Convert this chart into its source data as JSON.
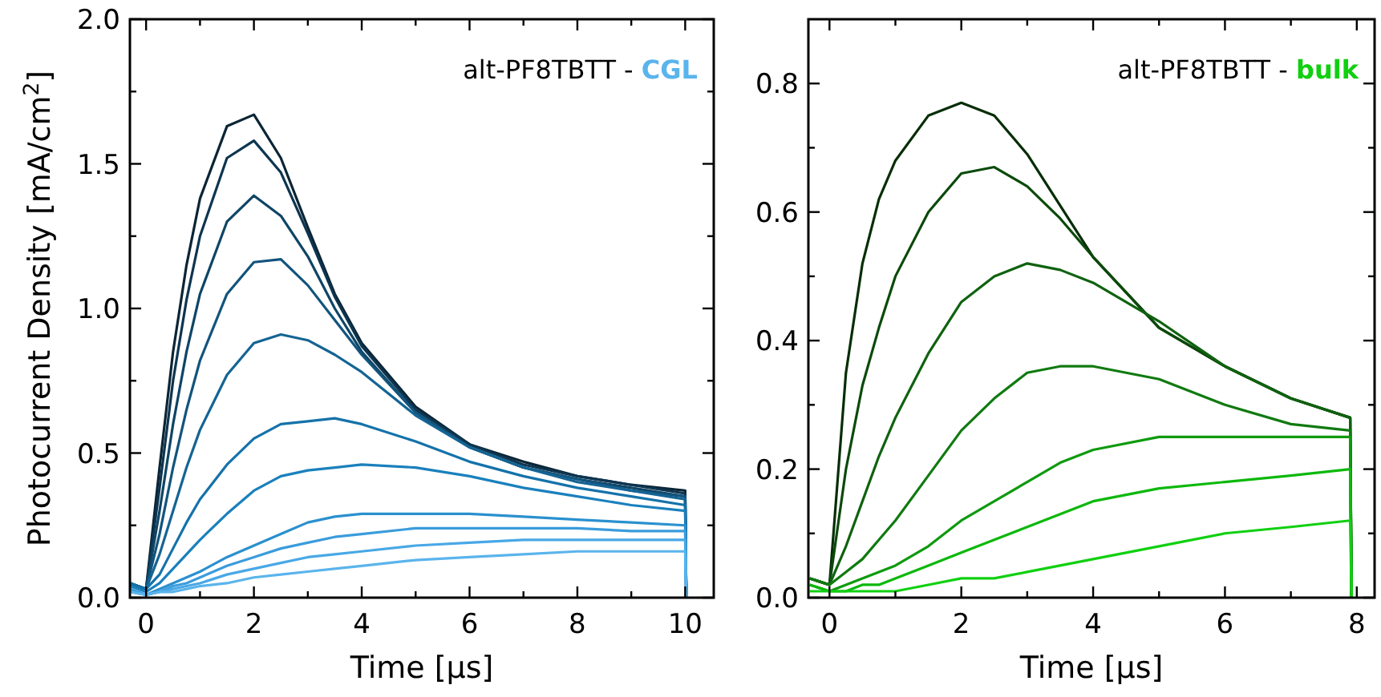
{
  "chart_data": [
    {
      "type": "line",
      "annotations": [
        "alt-PF8TBTT - CGL"
      ],
      "xlabel": "Time [μs]",
      "ylabel": "Photocurrent Density [mA/cm$^{2}$]",
      "xlim": [
        -0.3,
        10.53
      ],
      "ylim": [
        0,
        2.0
      ],
      "xticks": [
        0,
        {
          "value": 1,
          "label": null
        },
        2,
        {
          "value": 3,
          "label": null
        },
        4,
        {
          "value": 5,
          "label": null
        },
        6,
        {
          "value": 7,
          "label": null
        },
        8,
        {
          "value": 9,
          "label": null
        },
        10
      ],
      "yticks": [
        {
          "value": 0,
          "label": "0.0"
        },
        {
          "value": 0.25,
          "label": null
        },
        0.5,
        {
          "value": 0.75,
          "label": null
        },
        {
          "value": 1,
          "label": "1.0"
        },
        {
          "value": 1.25,
          "label": null
        },
        1.5,
        {
          "value": 1.75,
          "label": null
        },
        {
          "value": 2,
          "label": "2.0"
        }
      ],
      "grid": false,
      "line_style": "solid",
      "x": [
        -0.3,
        0,
        0.25,
        0.5,
        0.75,
        1,
        1.5,
        2,
        2.5,
        3,
        3.5,
        4,
        5,
        6,
        7,
        8,
        9,
        10,
        10.02
      ],
      "series": [
        {
          "color": "#0b2535",
          "values": [
            0.05,
            0.03,
            0.45,
            0.85,
            1.15,
            1.38,
            1.63,
            1.67,
            1.52,
            1.28,
            1.05,
            0.88,
            0.66,
            0.53,
            0.47,
            0.42,
            0.39,
            0.37,
            0
          ]
        },
        {
          "color": "#0d3550",
          "values": [
            0.05,
            0.03,
            0.38,
            0.75,
            1.03,
            1.25,
            1.52,
            1.58,
            1.47,
            1.26,
            1.04,
            0.87,
            0.65,
            0.53,
            0.46,
            0.42,
            0.39,
            0.36,
            0
          ]
        },
        {
          "color": "#0f4566",
          "values": [
            0.05,
            0.03,
            0.3,
            0.6,
            0.85,
            1.05,
            1.3,
            1.39,
            1.32,
            1.18,
            1.0,
            0.85,
            0.64,
            0.52,
            0.45,
            0.41,
            0.38,
            0.35,
            0
          ]
        },
        {
          "color": "#12547d",
          "values": [
            0.05,
            0.03,
            0.22,
            0.45,
            0.65,
            0.82,
            1.05,
            1.16,
            1.17,
            1.08,
            0.96,
            0.84,
            0.64,
            0.52,
            0.45,
            0.41,
            0.37,
            0.35,
            0
          ]
        },
        {
          "color": "#146494",
          "values": [
            0.05,
            0.03,
            0.15,
            0.3,
            0.45,
            0.58,
            0.77,
            0.88,
            0.91,
            0.89,
            0.84,
            0.78,
            0.63,
            0.52,
            0.45,
            0.4,
            0.37,
            0.34,
            0
          ]
        },
        {
          "color": "#1572aa",
          "values": [
            0.05,
            0.03,
            0.08,
            0.17,
            0.26,
            0.34,
            0.46,
            0.55,
            0.6,
            0.61,
            0.62,
            0.6,
            0.54,
            0.47,
            0.42,
            0.38,
            0.35,
            0.32,
            0
          ]
        },
        {
          "color": "#1a80bd",
          "values": [
            0.04,
            0.02,
            0.05,
            0.1,
            0.15,
            0.2,
            0.29,
            0.37,
            0.42,
            0.44,
            0.45,
            0.46,
            0.45,
            0.42,
            0.38,
            0.35,
            0.32,
            0.3,
            0
          ]
        },
        {
          "color": "#2a90cf",
          "values": [
            0.03,
            0.01,
            0.03,
            0.05,
            0.07,
            0.09,
            0.14,
            0.18,
            0.22,
            0.26,
            0.28,
            0.29,
            0.29,
            0.29,
            0.28,
            0.27,
            0.26,
            0.25,
            0
          ]
        },
        {
          "color": "#3a9cdc",
          "values": [
            0.03,
            0.01,
            0.02,
            0.04,
            0.05,
            0.07,
            0.11,
            0.14,
            0.17,
            0.19,
            0.21,
            0.22,
            0.24,
            0.24,
            0.24,
            0.24,
            0.23,
            0.23,
            0
          ]
        },
        {
          "color": "#48a8e6",
          "values": [
            0.02,
            0.01,
            0.02,
            0.03,
            0.04,
            0.05,
            0.08,
            0.1,
            0.12,
            0.14,
            0.15,
            0.16,
            0.18,
            0.19,
            0.2,
            0.2,
            0.2,
            0.2,
            0
          ]
        },
        {
          "color": "#5ab4ec",
          "values": [
            0.02,
            0.01,
            0.02,
            0.02,
            0.03,
            0.04,
            0.05,
            0.07,
            0.08,
            0.09,
            0.1,
            0.11,
            0.13,
            0.14,
            0.15,
            0.16,
            0.16,
            0.16,
            0
          ]
        }
      ]
    },
    {
      "type": "line",
      "annotations": [
        "alt-PF8TBTT - bulk"
      ],
      "xlabel": "Time [μs]",
      "xlim": [
        -0.32,
        8.27
      ],
      "ylim": [
        0,
        0.9
      ],
      "xticks": [
        0,
        {
          "value": 1,
          "label": null
        },
        2,
        {
          "value": 3,
          "label": null
        },
        4,
        {
          "value": 5,
          "label": null
        },
        6,
        {
          "value": 7,
          "label": null
        },
        8
      ],
      "yticks": [
        {
          "value": 0,
          "label": "0.0"
        },
        {
          "value": 0.1,
          "label": null
        },
        0.2,
        {
          "value": 0.3,
          "label": null
        },
        0.4,
        {
          "value": 0.5,
          "label": null
        },
        0.6,
        {
          "value": 0.7,
          "label": null
        },
        0.8
      ],
      "grid": false,
      "line_style": "solid",
      "x": [
        -0.3,
        0,
        0.25,
        0.5,
        0.75,
        1,
        1.5,
        2,
        2.5,
        3,
        3.5,
        4,
        5,
        6,
        7,
        7.9,
        7.92
      ],
      "series": [
        {
          "color": "#062e06",
          "values": [
            0.03,
            0.02,
            0.35,
            0.52,
            0.62,
            0.68,
            0.75,
            0.77,
            0.75,
            0.69,
            0.61,
            0.53,
            0.42,
            0.36,
            0.31,
            0.28,
            0
          ]
        },
        {
          "color": "#0b4a0b",
          "values": [
            0.03,
            0.02,
            0.2,
            0.33,
            0.42,
            0.5,
            0.6,
            0.66,
            0.67,
            0.64,
            0.59,
            0.53,
            0.42,
            0.36,
            0.31,
            0.28,
            0
          ]
        },
        {
          "color": "#0f620f",
          "values": [
            0.03,
            0.02,
            0.08,
            0.15,
            0.22,
            0.28,
            0.38,
            0.46,
            0.5,
            0.52,
            0.51,
            0.49,
            0.43,
            0.36,
            0.31,
            0.28,
            0
          ]
        },
        {
          "color": "#107a10",
          "values": [
            0.03,
            0.02,
            0.04,
            0.06,
            0.09,
            0.12,
            0.19,
            0.26,
            0.31,
            0.35,
            0.36,
            0.36,
            0.34,
            0.3,
            0.27,
            0.26,
            0
          ]
        },
        {
          "color": "#0e9a0e",
          "values": [
            0.02,
            0.01,
            0.02,
            0.03,
            0.04,
            0.05,
            0.08,
            0.12,
            0.15,
            0.18,
            0.21,
            0.23,
            0.25,
            0.25,
            0.25,
            0.25,
            0
          ]
        },
        {
          "color": "#0cb80c",
          "values": [
            0.02,
            0.01,
            0.01,
            0.02,
            0.02,
            0.03,
            0.05,
            0.07,
            0.09,
            0.11,
            0.13,
            0.15,
            0.17,
            0.18,
            0.19,
            0.2,
            0
          ]
        },
        {
          "color": "#10d010",
          "values": [
            0.01,
            0.01,
            0.01,
            0.01,
            0.01,
            0.01,
            0.02,
            0.03,
            0.03,
            0.04,
            0.05,
            0.06,
            0.08,
            0.1,
            0.11,
            0.12,
            0
          ]
        }
      ]
    }
  ]
}
